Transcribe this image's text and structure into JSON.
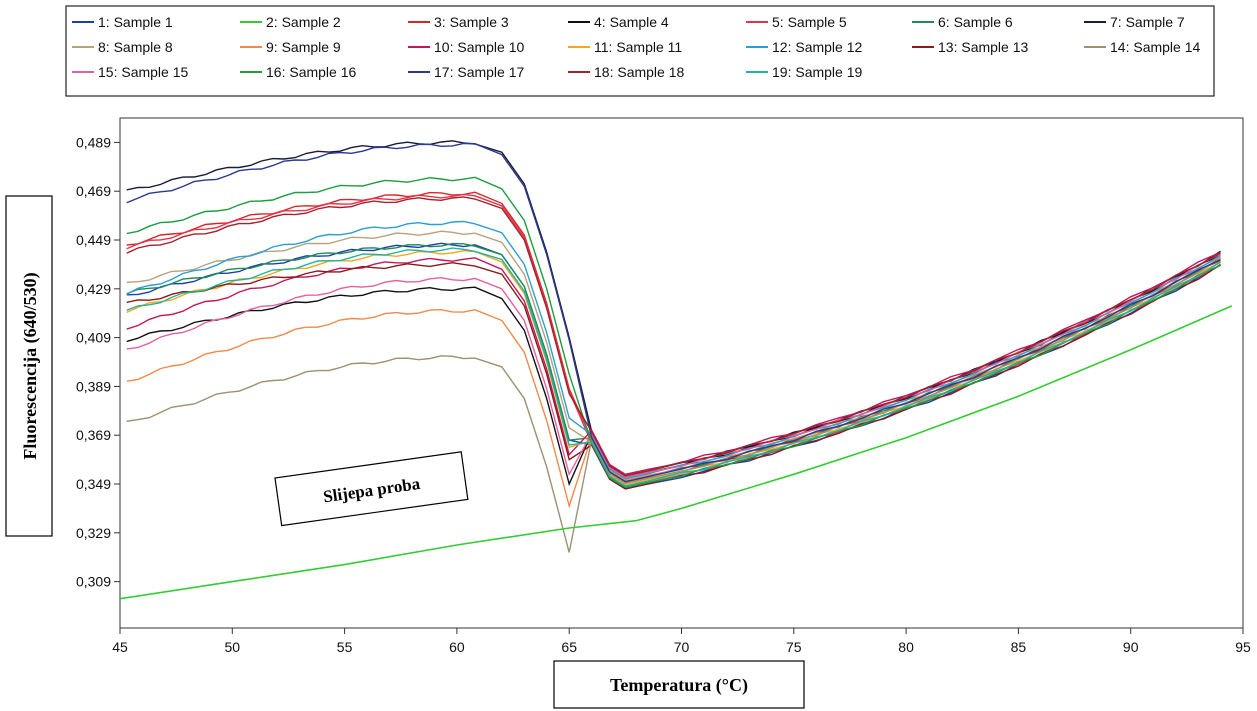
{
  "chart_data": {
    "type": "line",
    "title": "",
    "xlabel": "Temperatura (°C)",
    "ylabel": "Fluorescencija (640/530)",
    "xlim": [
      45,
      95
    ],
    "ylim": [
      0.29,
      0.499
    ],
    "x_ticks": [
      45,
      50,
      55,
      60,
      65,
      70,
      75,
      80,
      85,
      90,
      95
    ],
    "y_ticks": [
      0.309,
      0.329,
      0.349,
      0.369,
      0.389,
      0.409,
      0.429,
      0.449,
      0.469,
      0.489
    ],
    "y_tick_labels": [
      "0,309",
      "0,329",
      "0,349",
      "0,369",
      "0,389",
      "0,409",
      "0,429",
      "0,449",
      "0,469",
      "0,489"
    ],
    "x_tick_labels": [
      "45",
      "50",
      "55",
      "60",
      "65",
      "70",
      "75",
      "80",
      "85",
      "90",
      "95"
    ],
    "legend_position": "top",
    "grid": false,
    "annotation": "Slijepa proba",
    "blank_series": {
      "name": "2: Sample 2",
      "color": "#33cc33",
      "points": [
        [
          45,
          0.302
        ],
        [
          50,
          0.309
        ],
        [
          55,
          0.316
        ],
        [
          60,
          0.324
        ],
        [
          65,
          0.331
        ],
        [
          68,
          0.334
        ],
        [
          70,
          0.339
        ],
        [
          75,
          0.353
        ],
        [
          80,
          0.368
        ],
        [
          85,
          0.385
        ],
        [
          90,
          0.404
        ],
        [
          94.5,
          0.422
        ]
      ]
    },
    "series": [
      {
        "name": "1: Sample 1",
        "color": "#1f3fa8",
        "start": 0.426,
        "peak": 0.447
      },
      {
        "name": "3: Sample 3",
        "color": "#d62828",
        "start": 0.447,
        "peak": 0.468
      },
      {
        "name": "4: Sample 4",
        "color": "#111111",
        "start": 0.408,
        "peak": 0.429
      },
      {
        "name": "5: Sample 5",
        "color": "#e8324a",
        "start": 0.446,
        "peak": 0.467
      },
      {
        "name": "6: Sample 6",
        "color": "#1e8c5a",
        "start": 0.427,
        "peak": 0.447
      },
      {
        "name": "7: Sample 7",
        "color": "#1a1a3a",
        "start": 0.469,
        "peak": 0.489
      },
      {
        "name": "8: Sample 8",
        "color": "#b8a27a",
        "start": 0.431,
        "peak": 0.452
      },
      {
        "name": "9: Sample 9",
        "color": "#f08a4b",
        "start": 0.391,
        "peak": 0.42
      },
      {
        "name": "10: Sample 10",
        "color": "#c2185b",
        "start": 0.413,
        "peak": 0.441
      },
      {
        "name": "11: Sample 11",
        "color": "#f5a623",
        "start": 0.42,
        "peak": 0.444
      },
      {
        "name": "12: Sample 12",
        "color": "#2a9fd6",
        "start": 0.427,
        "peak": 0.456
      },
      {
        "name": "13: Sample 13",
        "color": "#8b1a1a",
        "start": 0.423,
        "peak": 0.439
      },
      {
        "name": "14: Sample 14",
        "color": "#9e9070",
        "start": 0.374,
        "peak": 0.401
      },
      {
        "name": "15: Sample 15",
        "color": "#e55fa0",
        "start": 0.404,
        "peak": 0.433
      },
      {
        "name": "16: Sample 16",
        "color": "#1b9e3e",
        "start": 0.452,
        "peak": 0.474
      },
      {
        "name": "17: Sample 17",
        "color": "#2b3990",
        "start": 0.465,
        "peak": 0.488
      },
      {
        "name": "18: Sample 18",
        "color": "#a3222d",
        "start": 0.444,
        "peak": 0.466
      },
      {
        "name": "19: Sample 19",
        "color": "#1fb59c",
        "start": 0.42,
        "peak": 0.445
      }
    ],
    "melt_dip": {
      "x": 67.5,
      "y": 0.35
    },
    "end_value": {
      "x": 94.5,
      "y": 0.442
    }
  }
}
